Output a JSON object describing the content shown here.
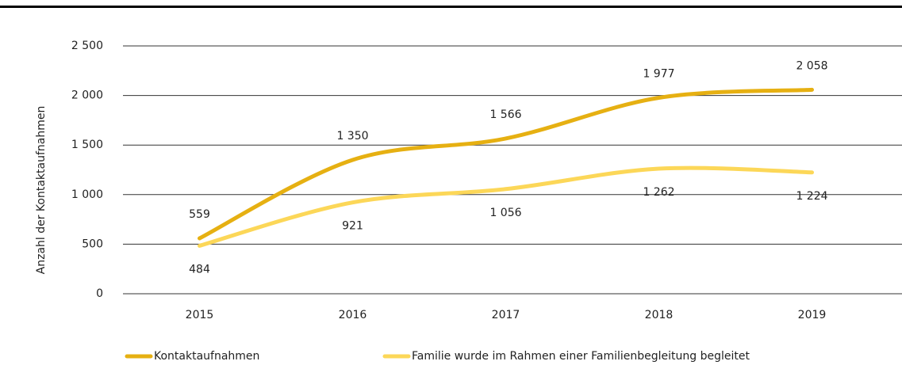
{
  "chart_data": {
    "type": "line",
    "y_label": "Anzahl der Kontaktaufnahmen",
    "categories": [
      "2015",
      "2016",
      "2017",
      "2018",
      "2019"
    ],
    "series": [
      {
        "name": "Kontaktaufnahmen",
        "color": "#e6b012",
        "values": [
          559,
          1350,
          1566,
          1977,
          2058
        ],
        "value_labels": [
          "559",
          "1 350",
          "1 566",
          "1 977",
          "2 058"
        ]
      },
      {
        "name": "Familie wurde im Rahmen einer Familienbegleitung begleitet",
        "color": "#fcd758",
        "values": [
          484,
          921,
          1056,
          1262,
          1224
        ],
        "value_labels": [
          "484",
          "921",
          "1 056",
          "1 262",
          "1 224"
        ]
      }
    ],
    "ylim": [
      0,
      2500
    ],
    "yticks": [
      0,
      500,
      {
        "value": 1000,
        "label": "1 000"
      },
      {
        "value": 1500,
        "label": "1 500"
      },
      {
        "value": 2000,
        "label": "2 000"
      },
      {
        "value": 2500,
        "label": "2 500"
      }
    ],
    "grid": true
  }
}
